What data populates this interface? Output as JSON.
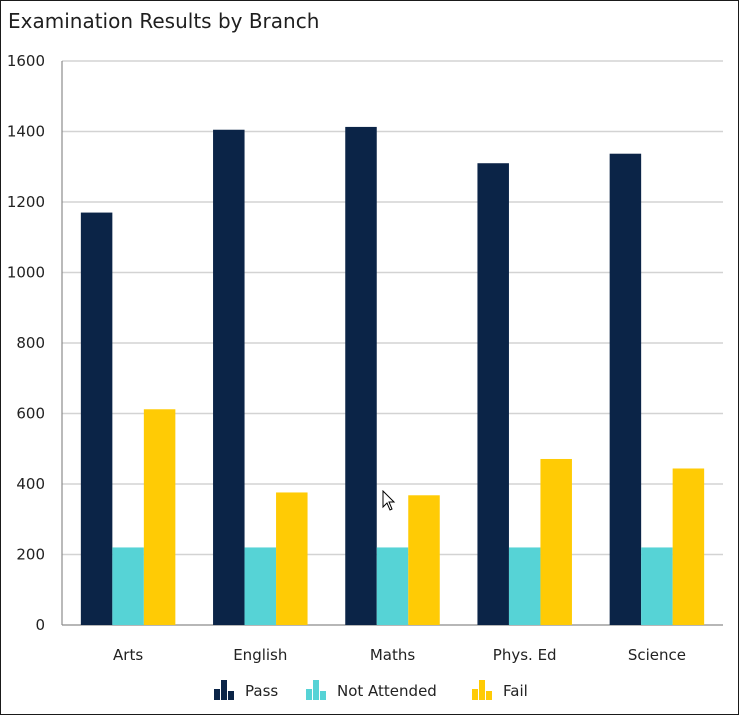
{
  "chart_data": {
    "type": "bar",
    "title": "Examination Results by Branch",
    "categories": [
      "Arts",
      "English",
      "Maths",
      "Phys. Ed",
      "Science"
    ],
    "series": [
      {
        "name": "Pass",
        "color": "#0b2447",
        "values": [
          1170,
          1405,
          1413,
          1310,
          1337
        ]
      },
      {
        "name": "Not Attended",
        "color": "#56d3d6",
        "values": [
          220,
          220,
          220,
          220,
          220
        ]
      },
      {
        "name": "Fail",
        "color": "#ffcb05",
        "values": [
          612,
          376,
          368,
          471,
          444
        ]
      }
    ],
    "ylim": [
      0,
      1600
    ],
    "yticks": [
      0,
      200,
      400,
      600,
      800,
      1000,
      1200,
      1400,
      1600
    ],
    "xlabel": "",
    "ylabel": "",
    "grid": true,
    "legend_position": "bottom-center"
  },
  "legend_icon": "bar-chart-icon",
  "cursor_icon": "mouse-pointer-icon"
}
